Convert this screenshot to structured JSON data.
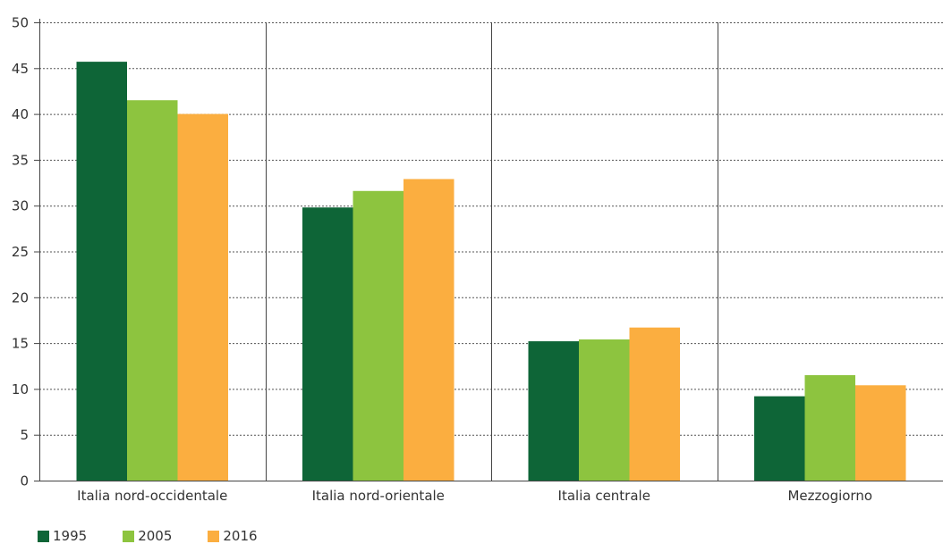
{
  "chart_data": {
    "type": "bar",
    "title": "",
    "xlabel": "",
    "ylabel": "",
    "ylim": [
      0,
      50
    ],
    "yticks": [
      0,
      5,
      10,
      15,
      20,
      25,
      30,
      35,
      40,
      45,
      50
    ],
    "grid": "horizontal dotted",
    "legend_position": "bottom-left",
    "categories": [
      "Italia nord-occidentale",
      "Italia nord-orientale",
      "Italia centrale",
      "Mezzogiorno"
    ],
    "series": [
      {
        "name": "1995",
        "color": "#0e6537",
        "values": [
          45.7,
          29.8,
          15.2,
          9.2
        ]
      },
      {
        "name": "2005",
        "color": "#8dc43f",
        "values": [
          41.5,
          31.6,
          15.4,
          11.5
        ]
      },
      {
        "name": "2016",
        "color": "#fbae40",
        "values": [
          40.0,
          32.9,
          16.7,
          10.4
        ]
      }
    ]
  }
}
